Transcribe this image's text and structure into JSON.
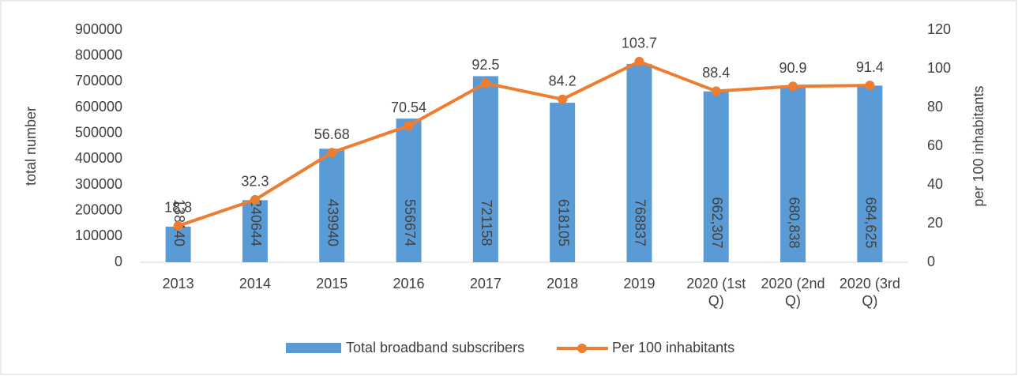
{
  "chart_data": {
    "type": "bar_line",
    "categories": [
      "2013",
      "2014",
      "2015",
      "2016",
      "2017",
      "2018",
      "2019",
      "2020 (1st Q)",
      "2020 (2nd Q)",
      "2020 (3rd Q)"
    ],
    "series": [
      {
        "name": "Total broadband subscribers",
        "type": "bar",
        "color": "#5b9bd5",
        "values": [
          138140,
          240644,
          439940,
          556674,
          721158,
          618105,
          768837,
          662307,
          680838,
          684625
        ],
        "value_labels": [
          "138140",
          "240644",
          "439940",
          "556674",
          "721158",
          "618105",
          "768837",
          "662,307",
          "680,838",
          "684,625"
        ]
      },
      {
        "name": "Per 100 inhabitants",
        "type": "line",
        "color": "#ed7d31",
        "axis": "y2",
        "values": [
          18.8,
          32.3,
          56.68,
          70.54,
          92.5,
          84.2,
          103.7,
          88.4,
          90.9,
          91.4
        ]
      }
    ],
    "ylabel": "total number",
    "y2label": "per 100 inhabitants",
    "ylim": [
      0,
      900000
    ],
    "yticks": [
      0,
      100000,
      200000,
      300000,
      400000,
      500000,
      600000,
      700000,
      800000,
      900000
    ],
    "y2lim": [
      0,
      120
    ],
    "y2ticks": [
      0,
      20,
      40,
      60,
      80,
      100,
      120
    ],
    "grid": false,
    "legend": "bottom"
  }
}
